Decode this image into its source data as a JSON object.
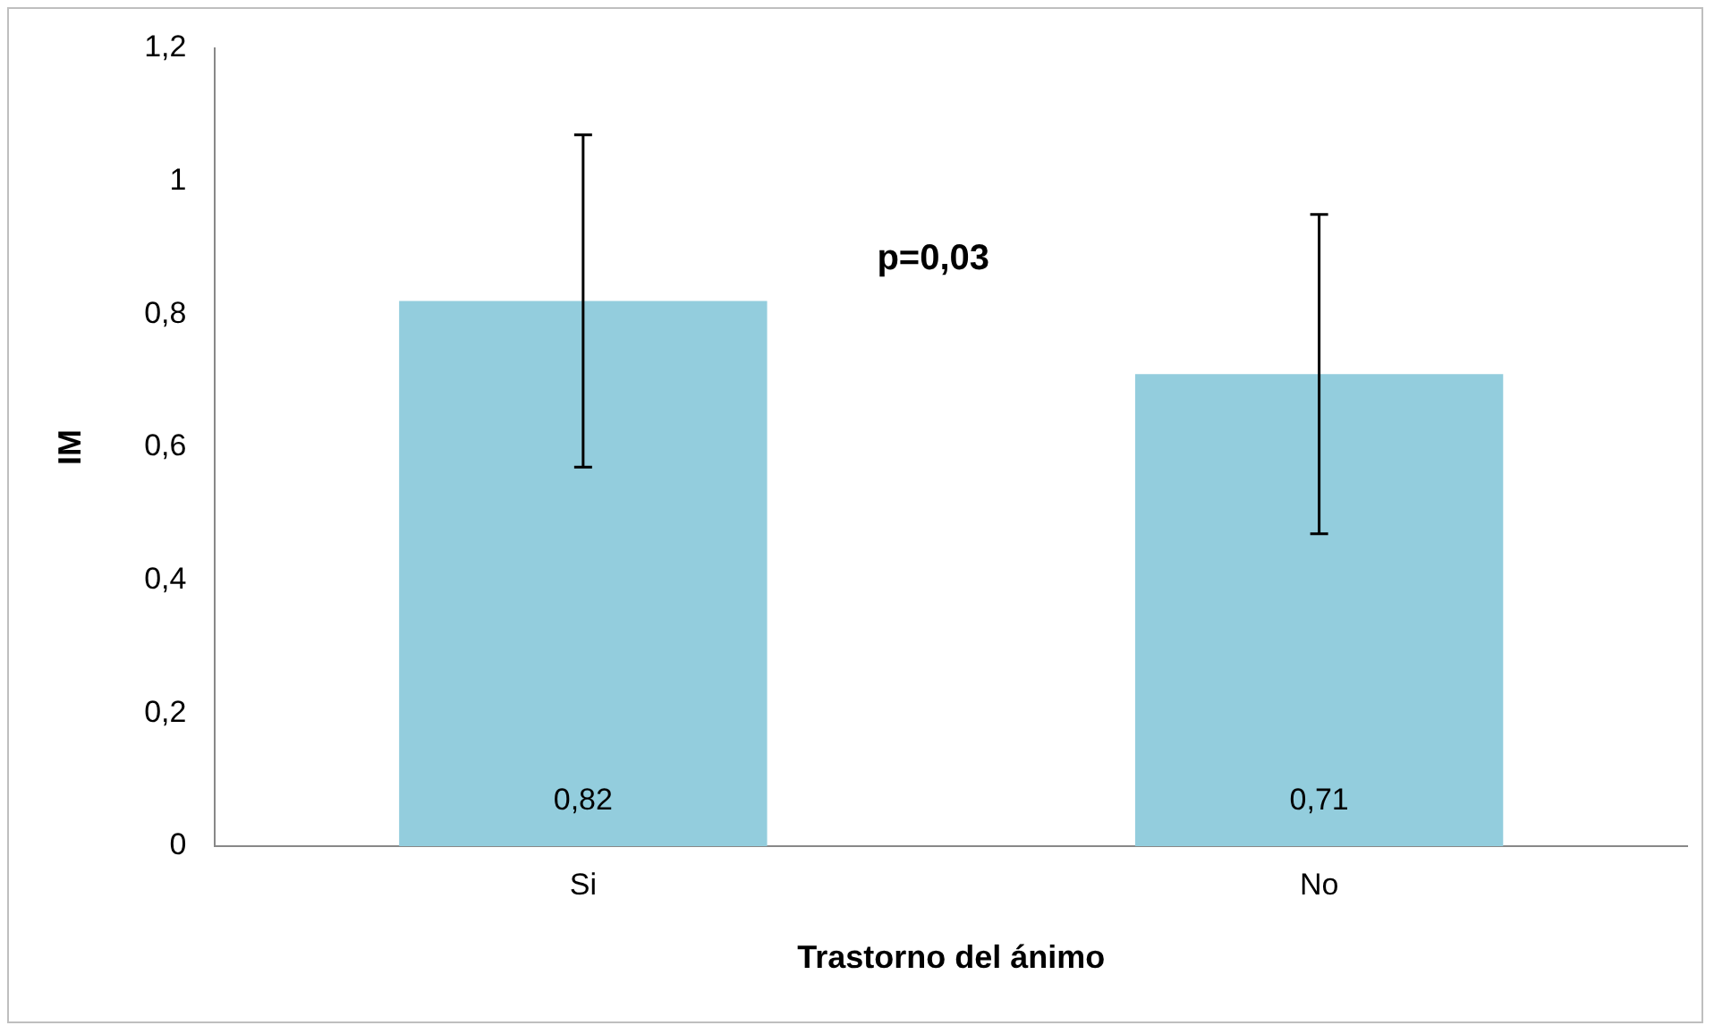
{
  "chart_data": {
    "type": "bar",
    "xlabel": "Trastorno del ánimo",
    "ylabel": "IM",
    "categories": [
      "Si",
      "No"
    ],
    "values": [
      0.82,
      0.71
    ],
    "errors": [
      0.25,
      0.24
    ],
    "value_labels": [
      "0,82",
      "0,71"
    ],
    "color": "#93cddd",
    "ylim": [
      0,
      1.2
    ],
    "yticks": [
      {
        "value": 0,
        "label": "0"
      },
      {
        "value": 0.2,
        "label": "0,2"
      },
      {
        "value": 0.4,
        "label": "0,4"
      },
      {
        "value": 0.6,
        "label": "0,6"
      },
      {
        "value": 0.8,
        "label": "0,8"
      },
      {
        "value": 1,
        "label": "1"
      },
      {
        "value": 1.2,
        "label": "1,2"
      }
    ],
    "annotations": [
      "p=0,03"
    ]
  }
}
